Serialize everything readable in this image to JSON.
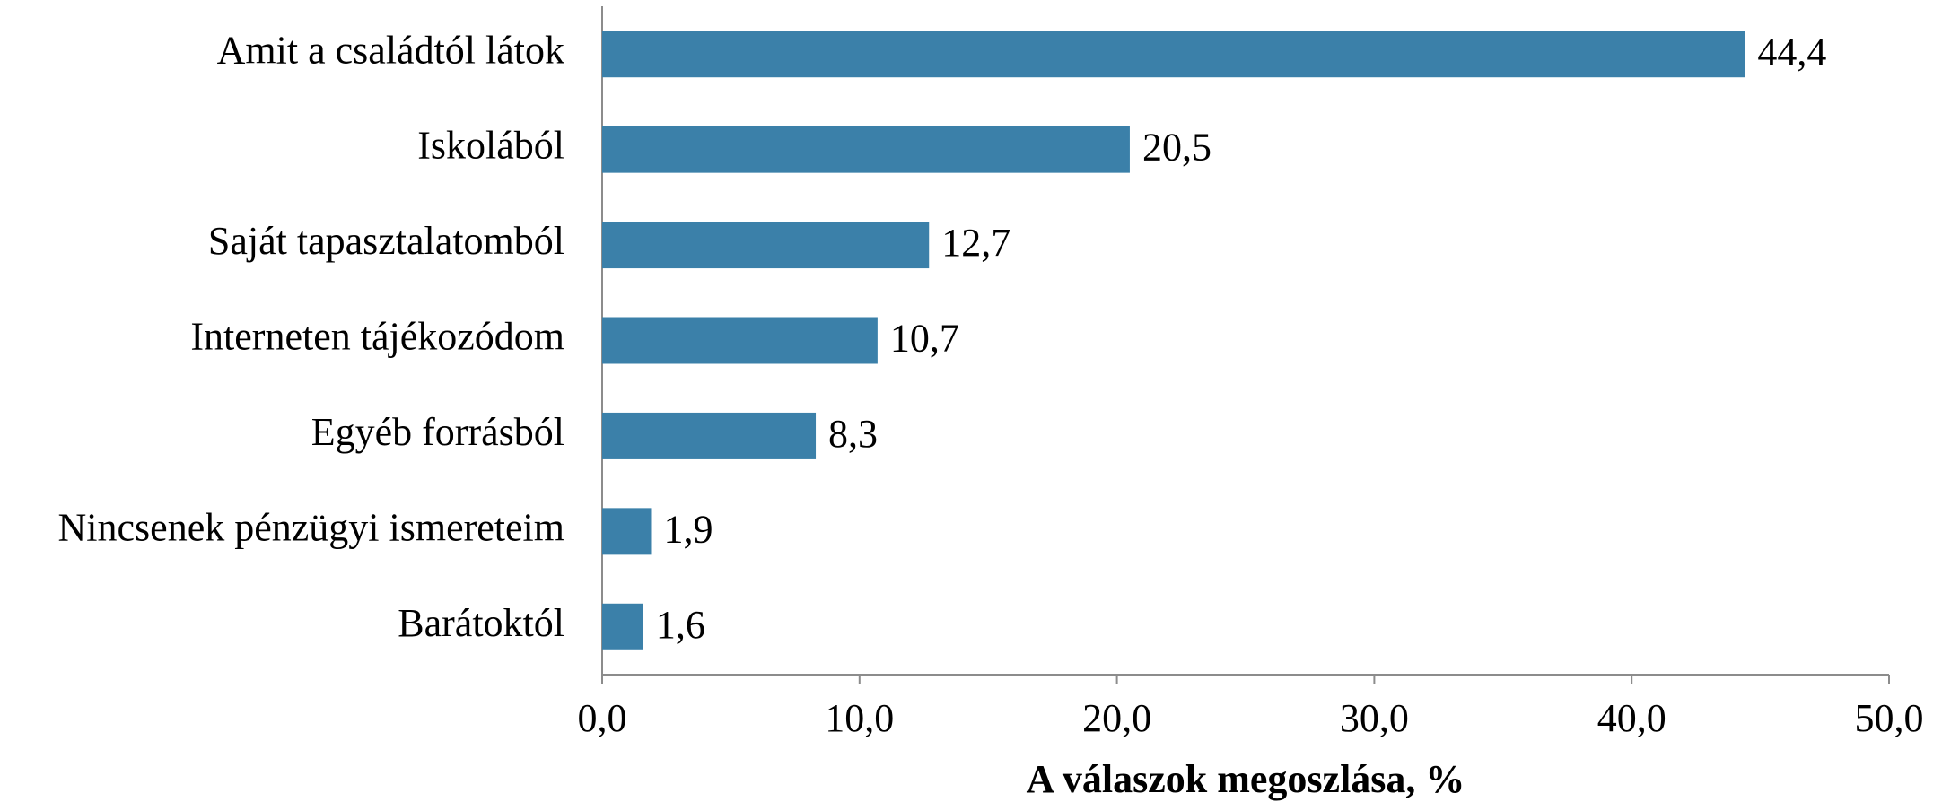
{
  "chart_data": {
    "type": "bar",
    "orientation": "horizontal",
    "categories": [
      "Amit a családtól látok",
      "Iskolából",
      "Saját tapasztalatomból",
      "Interneten tájékozódom",
      "Egyéb forrásból",
      "Nincsenek pénzügyi ismereteim",
      "Barátoktól"
    ],
    "values": [
      44.4,
      20.5,
      12.7,
      10.7,
      8.3,
      1.9,
      1.6
    ],
    "value_labels": [
      "44,4",
      "20,5",
      "12,7",
      "10,7",
      "8,3",
      "1,9",
      "1,6"
    ],
    "color": "#3b80a9",
    "xlabel": "A válaszok megoszlása, %",
    "xlim": [
      0,
      50
    ],
    "xticks": [
      {
        "value": 0,
        "label": "0,0"
      },
      {
        "value": 10,
        "label": "10,0"
      },
      {
        "value": 20,
        "label": "20,0"
      },
      {
        "value": 30,
        "label": "30,0"
      },
      {
        "value": 40,
        "label": "40,0"
      },
      {
        "value": 50,
        "label": "50,0"
      }
    ],
    "grid": false
  }
}
